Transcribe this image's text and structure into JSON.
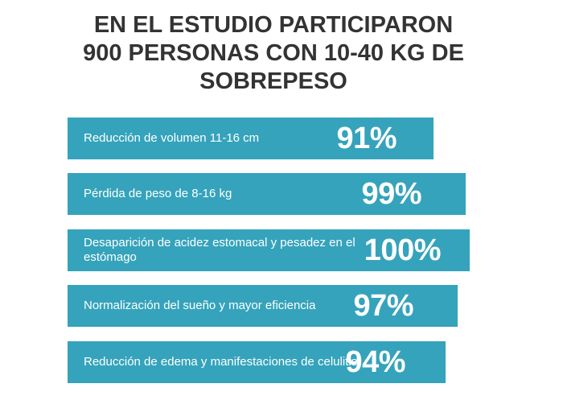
{
  "title_lines": [
    "EN EL ESTUDIO PARTICIPARON",
    "900 PERSONAS CON 10-40 KG DE",
    "SOBREPESO"
  ],
  "colors": {
    "bar": "#35a3bb",
    "title": "#333333",
    "bar_text": "#ffffff"
  },
  "chart_data": {
    "type": "bar",
    "orientation": "horizontal",
    "title": "EN EL ESTUDIO PARTICIPARON 900 PERSONAS CON 10-40 KG DE SOBREPESO",
    "categories": [
      "Reducción de volumen 11-16 cm",
      "Pérdida de peso de 8-16 kg",
      "Desaparición de acidez estomacal y pesadez en el estómago",
      "Normalización del sueño y mayor eficiencia",
      "Reducción de edema y manifestaciones de celulitis"
    ],
    "values": [
      91,
      99,
      100,
      97,
      94
    ],
    "value_labels": [
      "91%",
      "99%",
      "100%",
      "97%",
      "94%"
    ],
    "unit": "%",
    "xlim": [
      0,
      100
    ],
    "grid": false,
    "legend": "none"
  }
}
